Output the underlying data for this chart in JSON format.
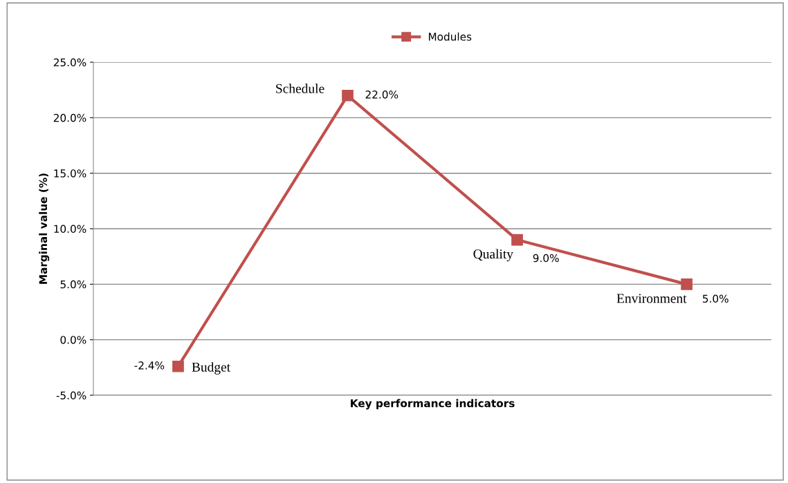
{
  "chart_data": {
    "type": "line",
    "xlabel": "Key performance indicators",
    "ylabel": "Marginal value (%)",
    "categories": [
      "Budget",
      "Schedule",
      "Quality",
      "Environment"
    ],
    "series": [
      {
        "name": "Modules",
        "color": "#c0504d",
        "values": [
          -2.4,
          22.0,
          9.0,
          5.0
        ],
        "value_labels": [
          "-2.4%",
          "22.0%",
          "9.0%",
          "5.0%"
        ]
      }
    ],
    "ylim": [
      -5,
      25
    ],
    "yticks": [
      {
        "value": -5,
        "label": "-5.0%"
      },
      {
        "value": 0,
        "label": "0.0%"
      },
      {
        "value": 5,
        "label": "5.0%"
      },
      {
        "value": 10,
        "label": "10.0%"
      },
      {
        "value": 15,
        "label": "15.0%"
      },
      {
        "value": 20,
        "label": "20.0%"
      },
      {
        "value": 25,
        "label": "25.0%"
      }
    ],
    "grid": "y",
    "legend": "top",
    "marker": "square",
    "line_style": "solid",
    "tick_labels": "y"
  }
}
